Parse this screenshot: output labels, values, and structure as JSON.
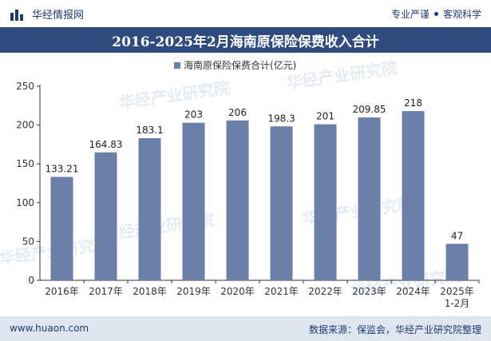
{
  "header": {
    "brand": "华经情报网",
    "slogan_left": "专业严谨",
    "slogan_right": "客观科学"
  },
  "title": "2016-2025年2月海南原保险保费收入合计",
  "chart_data": {
    "type": "bar",
    "title": "2016-2025年2月海南原保险保费收入合计",
    "categories": [
      "2016年",
      "2017年",
      "2018年",
      "2019年",
      "2020年",
      "2021年",
      "2022年",
      "2023年",
      "2024年",
      "2025年 1-2月"
    ],
    "series": [
      {
        "name": "海南原保险保费合计(亿元)",
        "values": [
          133.21,
          164.83,
          183.1,
          203,
          206,
          198.3,
          201,
          209.85,
          218,
          47
        ],
        "labels": [
          "133.21",
          "164.83",
          "183.1",
          "203",
          "206",
          "198.3",
          "201",
          "209.85",
          "218",
          "47"
        ]
      }
    ],
    "yticks": [
      "0",
      "50",
      "100",
      "150",
      "200",
      "250"
    ],
    "ylim": [
      0,
      250
    ],
    "bar_color": "#6b7fa8",
    "legend_position": "top-center",
    "grid": false
  },
  "watermark": "华经产业研究院",
  "footer": {
    "url": "www.huaon.com",
    "source": "数据来源：保监会，华经产业研究院整理"
  }
}
